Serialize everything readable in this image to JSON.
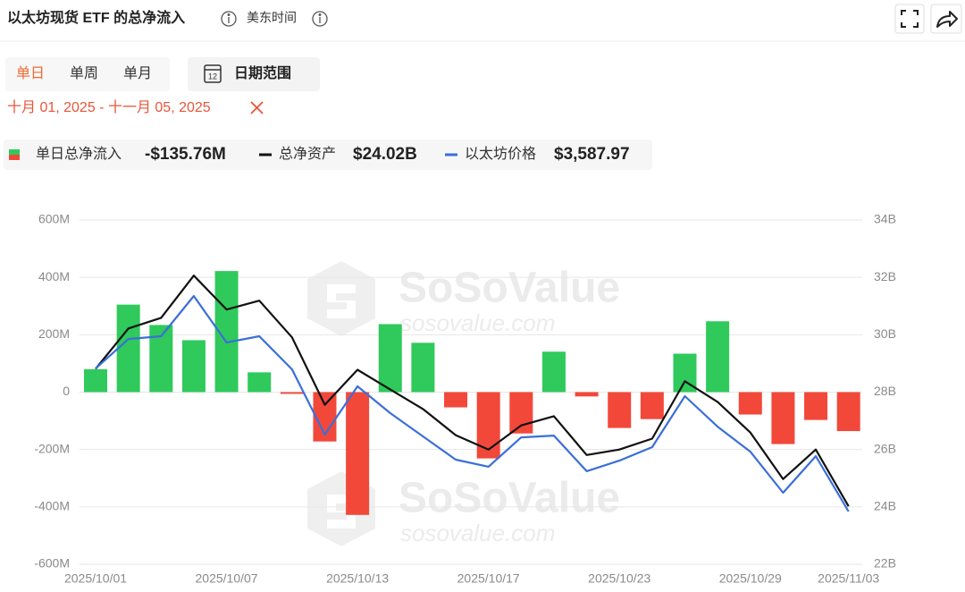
{
  "header": {
    "title": "以太坊现货 ETF 的总净流入",
    "timezone": "美东时间"
  },
  "tabs": [
    "单日",
    "单周",
    "单月"
  ],
  "active_tab": 0,
  "date_range_button": {
    "icon_day": "12",
    "label": "日期范围"
  },
  "date_range": "十月 01, 2025 - 十一月 05, 2025",
  "watermark": {
    "brand": "SoSoValue",
    "url": "sosovalue.com"
  },
  "chart_data": {
    "type": "combo",
    "categories": [
      "2025/10/01",
      null,
      null,
      null,
      "2025/10/07",
      null,
      null,
      null,
      "2025/10/13",
      null,
      null,
      null,
      "2025/10/17",
      null,
      null,
      null,
      "2025/10/23",
      null,
      null,
      null,
      "2025/10/29",
      null,
      null,
      "2025/11/03"
    ],
    "series": [
      {
        "name": "单日总净流入",
        "type": "bar",
        "color_positive": "#2fca5b",
        "color_negative": "#f2483a",
        "legend_value": "-$135.76M",
        "values": [
          80,
          305,
          234,
          181,
          422,
          69,
          -6,
          -172,
          -428,
          237,
          172,
          -53,
          -231,
          -144,
          141,
          -15,
          -125,
          -94,
          134,
          247,
          -78,
          -181,
          -97,
          -135.76
        ]
      },
      {
        "name": "总净资产",
        "type": "line",
        "color": "#111111",
        "axis": "y2",
        "legend_value": "$24.02B",
        "values": [
          28.81,
          30.22,
          30.59,
          32.06,
          30.88,
          31.19,
          29.91,
          27.56,
          28.78,
          28.09,
          27.41,
          26.5,
          26.0,
          26.84,
          27.16,
          25.81,
          26.0,
          26.38,
          28.38,
          27.66,
          26.59,
          24.97,
          26.0,
          24.02
        ]
      },
      {
        "name": "以太坊价格",
        "type": "line",
        "color": "#3a6fd8",
        "legend_value": "$3,587.97",
        "values": [
          4319,
          4470,
          4484,
          4690,
          4452,
          4484,
          4315,
          3981,
          4228,
          4091,
          3972,
          3853,
          3817,
          3967,
          3976,
          3794,
          3848,
          3917,
          4178,
          4022,
          3894,
          3684,
          3871,
          3587.97
        ]
      }
    ],
    "ylim": [
      -600,
      600
    ],
    "yticks": [
      {
        "value": -600,
        "label": "-600M"
      },
      {
        "value": -400,
        "label": "-400M"
      },
      {
        "value": -200,
        "label": "-200M"
      },
      0,
      {
        "value": 200,
        "label": "200M"
      },
      {
        "value": 400,
        "label": "400M"
      },
      {
        "value": 600,
        "label": "600M"
      }
    ],
    "y2lim": [
      22,
      34
    ],
    "y2ticks": [
      {
        "value": 22,
        "label": "22B"
      },
      {
        "value": 24,
        "label": "24B"
      },
      {
        "value": 26,
        "label": "26B"
      },
      {
        "value": 28,
        "label": "28B"
      },
      {
        "value": 30,
        "label": "30B"
      },
      {
        "value": 32,
        "label": "32B"
      },
      {
        "value": 34,
        "label": "34B"
      }
    ],
    "grid": true
  }
}
